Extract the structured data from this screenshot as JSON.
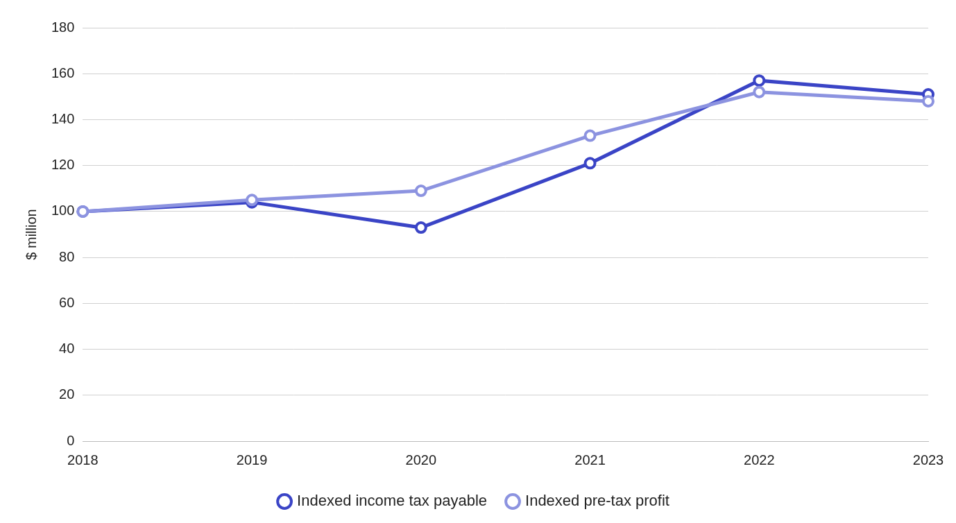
{
  "chart_data": {
    "type": "line",
    "y_label": "$ million",
    "categories": [
      "2018",
      "2019",
      "2020",
      "2021",
      "2022",
      "2023"
    ],
    "series": [
      {
        "name": "Indexed income tax payable",
        "color": "#3a44c6",
        "values": [
          100,
          104,
          93,
          121,
          157,
          151
        ],
        "marker": "circle",
        "line_style": "solid"
      },
      {
        "name": "Indexed pre-tax profit",
        "color": "#8c93e0",
        "values": [
          100,
          105,
          109,
          133,
          152,
          148
        ],
        "marker": "circle",
        "line_style": "solid"
      }
    ],
    "ylim": [
      0,
      180
    ],
    "yticks": [
      0,
      20,
      40,
      60,
      80,
      100,
      120,
      140,
      160,
      180
    ],
    "grid": true,
    "legend": "bottom"
  }
}
